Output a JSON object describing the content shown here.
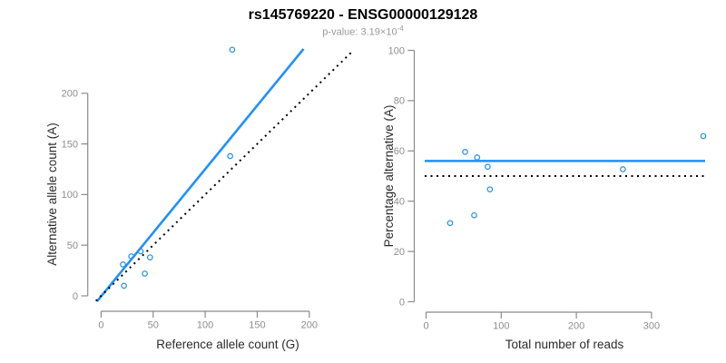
{
  "header": {
    "title": "rs145769220 - ENSG00000129128",
    "subtitle_label": "p-value: 3.19×10",
    "subtitle_exponent": "-4"
  },
  "colors": {
    "line_blue": "#1E90FF",
    "point_blue": "#2E93E8",
    "dotted_line": "#000000",
    "axis": "#8b8b8b",
    "tick_label": "#8e8e8e",
    "axis_title": "#2b2b2b"
  },
  "chart_data": [
    {
      "type": "scatter",
      "panel": "left",
      "xlabel": "Reference allele count (G)",
      "ylabel": "Alternative allele count (A)",
      "x": [
        21,
        29,
        38,
        47,
        42,
        22,
        124,
        126
      ],
      "y": [
        31,
        39,
        44,
        38,
        22,
        10,
        138,
        243
      ],
      "xticks": [
        0,
        50,
        100,
        150,
        200
      ],
      "yticks": [
        0,
        50,
        100,
        150,
        200
      ],
      "xlim": [
        0,
        240
      ],
      "ylim": [
        0,
        250
      ],
      "grid": false,
      "lines": [
        {
          "name": "fit-line",
          "style": "solid",
          "slope": 1.256,
          "intercept": -0.5,
          "x_range": [
            -4,
            194.5
          ]
        },
        {
          "name": "identity-line",
          "style": "dotted",
          "slope": 1,
          "intercept": 0,
          "x_range": [
            -5,
            240
          ]
        }
      ]
    },
    {
      "type": "scatter",
      "panel": "right",
      "xlabel": "Total number of reads",
      "ylabel": "Percentage alternative (A)",
      "x": [
        52,
        68,
        82,
        85,
        64,
        32,
        262,
        369
      ],
      "y": [
        59.6,
        57.4,
        53.7,
        44.7,
        34.4,
        31.3,
        52.7,
        65.9
      ],
      "xticks": [
        0,
        100,
        200,
        300
      ],
      "yticks": [
        0,
        20,
        40,
        60,
        80,
        100
      ],
      "xlim": [
        0,
        375
      ],
      "ylim": [
        0,
        100
      ],
      "grid": false,
      "hlines": [
        {
          "name": "mean-percentage-line",
          "style": "solid",
          "value": 56
        },
        {
          "name": "fifty-percent-line",
          "style": "dotted",
          "value": 50
        }
      ]
    }
  ]
}
